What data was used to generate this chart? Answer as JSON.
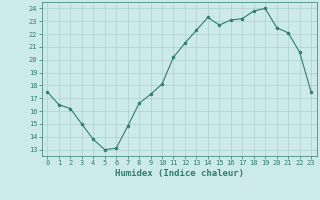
{
  "x": [
    0,
    1,
    2,
    3,
    4,
    5,
    6,
    7,
    8,
    9,
    10,
    11,
    12,
    13,
    14,
    15,
    16,
    17,
    18,
    19,
    20,
    21,
    22,
    23
  ],
  "y": [
    17.5,
    16.5,
    16.2,
    15.0,
    13.8,
    13.0,
    13.1,
    14.8,
    16.6,
    17.3,
    18.1,
    20.2,
    21.3,
    22.3,
    23.3,
    22.7,
    23.1,
    23.2,
    23.8,
    24.0,
    22.5,
    22.1,
    20.6,
    17.5
  ],
  "xlim": [
    -0.5,
    23.5
  ],
  "ylim": [
    12.5,
    24.5
  ],
  "yticks": [
    13,
    14,
    15,
    16,
    17,
    18,
    19,
    20,
    21,
    22,
    23,
    24
  ],
  "xticks": [
    0,
    1,
    2,
    3,
    4,
    5,
    6,
    7,
    8,
    9,
    10,
    11,
    12,
    13,
    14,
    15,
    16,
    17,
    18,
    19,
    20,
    21,
    22,
    23
  ],
  "xlabel": "Humidex (Indice chaleur)",
  "line_color": "#2e7d72",
  "marker_color": "#2e7d72",
  "bg_color": "#cdeaea",
  "grid_color": "#b0cece",
  "tick_color": "#2e7d72",
  "label_color": "#2e7d72"
}
